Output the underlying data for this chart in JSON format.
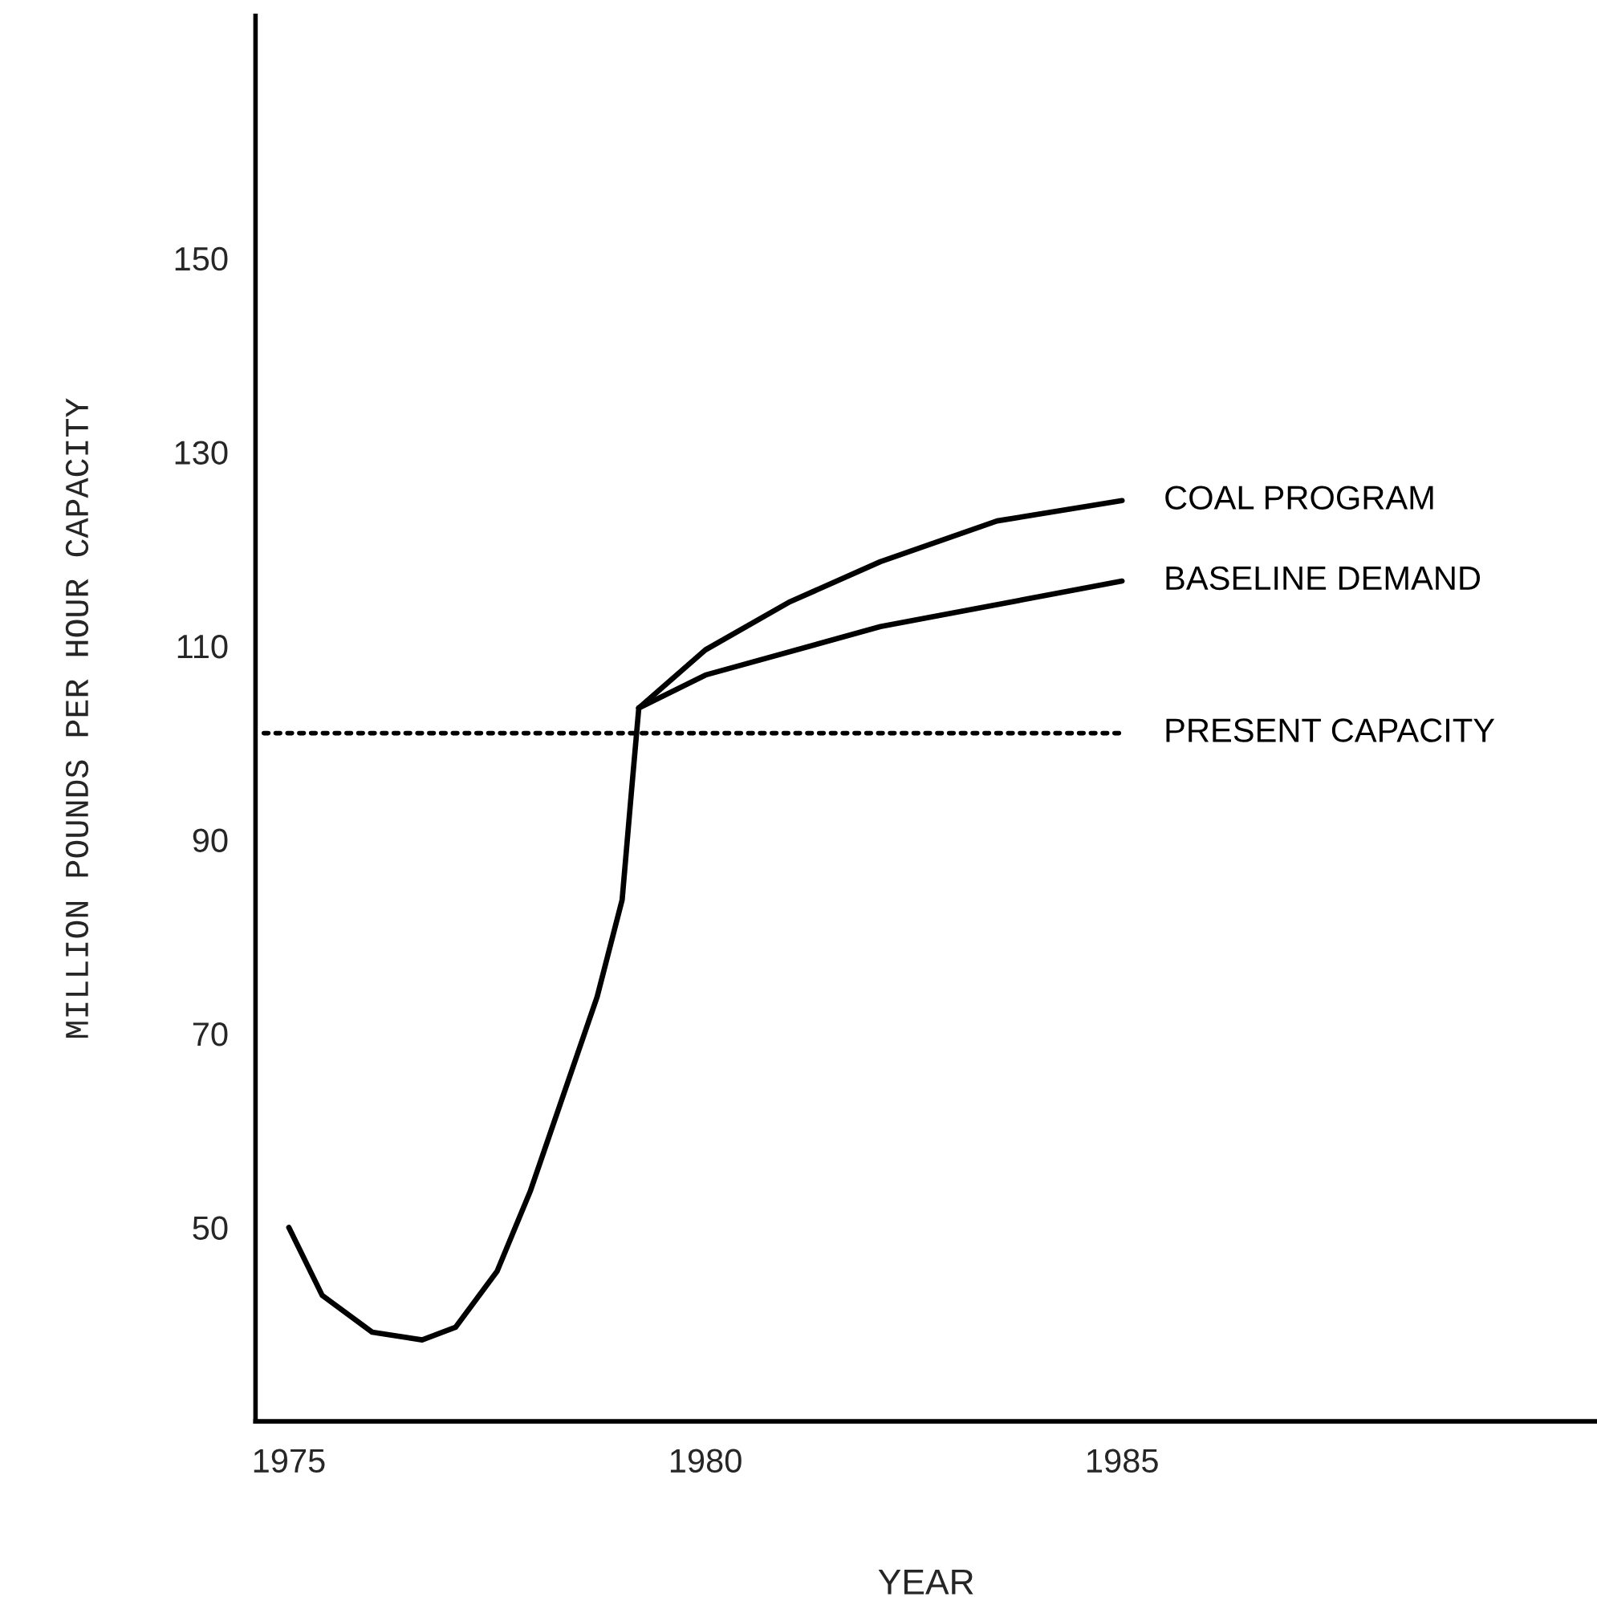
{
  "chart_data": {
    "type": "line",
    "xlabel": "YEAR",
    "ylabel": "MILLION POUNDS PER HOUR CAPACITY",
    "xlim": [
      1974.6,
      1990.7
    ],
    "ylim": [
      30,
      175
    ],
    "xticks": [
      1975,
      1980,
      1985
    ],
    "yticks": [
      50,
      70,
      90,
      110,
      130,
      150
    ],
    "grid": false,
    "legend": false,
    "marker": "none",
    "line_style": "solid",
    "series": [
      {
        "color": "#000000",
        "x": [
          1975.0,
          1975.4,
          1976.0,
          1976.6,
          1977.0,
          1977.5,
          1977.9,
          1978.3,
          1978.7,
          1979.0,
          1979.1,
          1979.2
        ],
        "values": [
          50,
          43,
          39.2,
          38.4,
          39.7,
          45.5,
          53.8,
          63.8,
          73.8,
          83.8,
          93.8,
          103.6
        ]
      },
      {
        "name": "COAL PROGRAM",
        "color": "#000000",
        "x": [
          1979.2,
          1980.0,
          1981.0,
          1982.1,
          1983.5,
          1985.0
        ],
        "values": [
          103.6,
          109.6,
          114.5,
          118.7,
          122.9,
          125
        ]
      },
      {
        "name": "BASELINE DEMAND",
        "color": "#000000",
        "x": [
          1979.2,
          1980.0,
          1982.1,
          1985.0
        ],
        "values": [
          103.6,
          107,
          112,
          116.7
        ]
      },
      {
        "name": "PRESENT CAPACITY",
        "color": "#000000",
        "line_style": "dotted",
        "x": [
          1974.7,
          1985.0
        ],
        "values": [
          101,
          101
        ]
      }
    ]
  }
}
